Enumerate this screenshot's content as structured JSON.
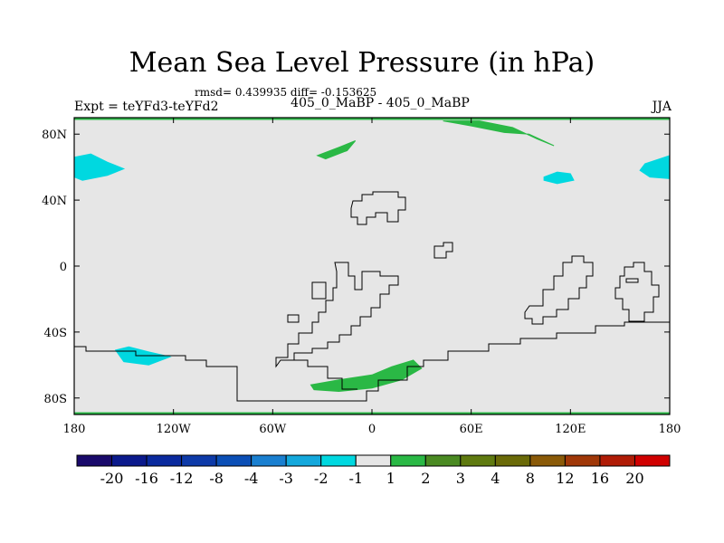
{
  "title": "Mean Sea Level Pressure (in hPa)",
  "stats": "rmsd= 0.439935 diff= -0.153625",
  "subtitle_left": "Expt = teYFd3-teYFd2",
  "subtitle_center": "405_0_MaBP - 405_0_MaBP",
  "subtitle_right": "JJA",
  "colors": {
    "ocean": "#e6e6e6",
    "coast": "#000000",
    "neg": "#00d8e0",
    "pos": "#2ab845",
    "frame": "#000000"
  },
  "chart_data": {
    "type": "heatmap",
    "projection": "cylindrical-equidistant",
    "xlim": [
      -180,
      180
    ],
    "ylim": [
      -90,
      90
    ],
    "x_ticks": [
      {
        "value": -180,
        "label": "180"
      },
      {
        "value": -120,
        "label": "120W"
      },
      {
        "value": -60,
        "label": "60W"
      },
      {
        "value": 0,
        "label": "0"
      },
      {
        "value": 60,
        "label": "60E"
      },
      {
        "value": 120,
        "label": "120E"
      },
      {
        "value": 180,
        "label": "180"
      }
    ],
    "y_ticks": [
      {
        "value": 80,
        "label": "80N"
      },
      {
        "value": 40,
        "label": "40N"
      },
      {
        "value": 0,
        "label": "0"
      },
      {
        "value": -40,
        "label": "40S"
      },
      {
        "value": -80,
        "label": "80S"
      }
    ],
    "regions": [
      {
        "name": "negative-anomaly-northwest-pacific",
        "sign": "negative",
        "points": [
          [
            -180,
            66
          ],
          [
            -170,
            68
          ],
          [
            -160,
            63
          ],
          [
            -150,
            59
          ],
          [
            -160,
            55
          ],
          [
            -175,
            52
          ],
          [
            -180,
            54
          ]
        ]
      },
      {
        "name": "negative-anomaly-northeast-pacific",
        "sign": "negative",
        "points": [
          [
            165,
            62
          ],
          [
            180,
            67
          ],
          [
            180,
            53
          ],
          [
            168,
            54
          ],
          [
            162,
            58
          ]
        ]
      },
      {
        "name": "negative-anomaly-north-asia",
        "sign": "negative",
        "points": [
          [
            104,
            54
          ],
          [
            112,
            57
          ],
          [
            120,
            56
          ],
          [
            122,
            52
          ],
          [
            112,
            50
          ],
          [
            104,
            52
          ]
        ]
      },
      {
        "name": "negative-anomaly-south-pacific",
        "sign": "negative",
        "points": [
          [
            -155,
            -51
          ],
          [
            -147,
            -49
          ],
          [
            -135,
            -52
          ],
          [
            -122,
            -55
          ],
          [
            -135,
            -60
          ],
          [
            -150,
            -58
          ]
        ]
      },
      {
        "name": "positive-anomaly-southern-ocean",
        "sign": "positive",
        "points": [
          [
            -37,
            -72
          ],
          [
            -20,
            -69
          ],
          [
            0,
            -66
          ],
          [
            12,
            -61
          ],
          [
            25,
            -57
          ],
          [
            30,
            -62
          ],
          [
            18,
            -69
          ],
          [
            0,
            -74
          ],
          [
            -20,
            -76
          ],
          [
            -35,
            -75
          ]
        ]
      },
      {
        "name": "positive-anomaly-arctic",
        "sign": "positive",
        "points": [
          [
            43,
            88
          ],
          [
            60,
            85
          ],
          [
            80,
            81
          ],
          [
            95,
            80
          ],
          [
            110,
            73
          ],
          [
            100,
            77
          ],
          [
            85,
            84
          ],
          [
            65,
            88
          ]
        ]
      },
      {
        "name": "positive-anomaly-greenland",
        "sign": "positive",
        "points": [
          [
            -33,
            67
          ],
          [
            -20,
            72
          ],
          [
            -10,
            76
          ],
          [
            -15,
            70
          ],
          [
            -28,
            65
          ]
        ]
      }
    ],
    "colorbar": {
      "labels": [
        "-20",
        "-16",
        "-12",
        "-8",
        "-4",
        "-3",
        "-2",
        "-1",
        "1",
        "2",
        "3",
        "4",
        "8",
        "12",
        "16",
        "20"
      ],
      "colors": [
        "#1a0a6b",
        "#0b1a8c",
        "#0a2a9e",
        "#0d3aa8",
        "#0b4fb6",
        "#1a7fd0",
        "#14a8dc",
        "#00d8e0",
        "#e6e6e6",
        "#2ab845",
        "#4a8a22",
        "#5f7a10",
        "#6a6a08",
        "#8a5a08",
        "#a03808",
        "#b01c06",
        "#d00000"
      ]
    }
  }
}
